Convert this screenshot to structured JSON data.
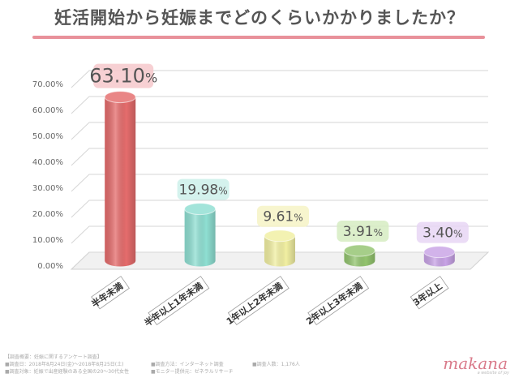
{
  "chart_data": {
    "type": "bar",
    "title": "妊活開始から妊娠までどのくらいかかりましたか？",
    "categories": [
      "半年未満",
      "半年以上1年未満",
      "1年以上2年未満",
      "2年以上3年未満",
      "3年以上"
    ],
    "values": [
      63.1,
      19.98,
      9.61,
      3.91,
      3.4
    ],
    "data_labels": [
      {
        "num": "63.10",
        "unit": "%"
      },
      {
        "num": "19.98",
        "unit": "%"
      },
      {
        "num": "9.61",
        "unit": "%"
      },
      {
        "num": "3.91",
        "unit": "%"
      },
      {
        "num": "3.40",
        "unit": "%"
      }
    ],
    "yticks": [
      "0.00%",
      "10.00%",
      "20.00%",
      "30.00%",
      "40.00%",
      "50.00%",
      "60.00%",
      "70.00%"
    ],
    "ylim": [
      0,
      70
    ],
    "grid": true,
    "colors": {
      "bars": [
        "#e56c6c",
        "#8fdfd2",
        "#f1efa2",
        "#93c46f",
        "#c8a3e6"
      ],
      "label_bg": [
        "#f6c8cb",
        "#cdf0ea",
        "#f6f3c6",
        "#d6ecc2",
        "#e8d6f5"
      ]
    }
  },
  "footer": {
    "survey_overview": "【調査概要：妊娠に関するアンケート調査】",
    "survey_period": "■調査日：2018年8月24日(金)〜2018年8月25日(土)",
    "survey_method": "■調査方法：インターネット調査",
    "survey_count": "■調査人数：1,176人",
    "survey_target": "■調査対象：妊娠で出産経験のある全国の20～30代女性",
    "monitor": "■モニター提供元：ゼネラルリサーチ"
  },
  "logo": {
    "text": "makana",
    "tagline": "a website of joy"
  }
}
